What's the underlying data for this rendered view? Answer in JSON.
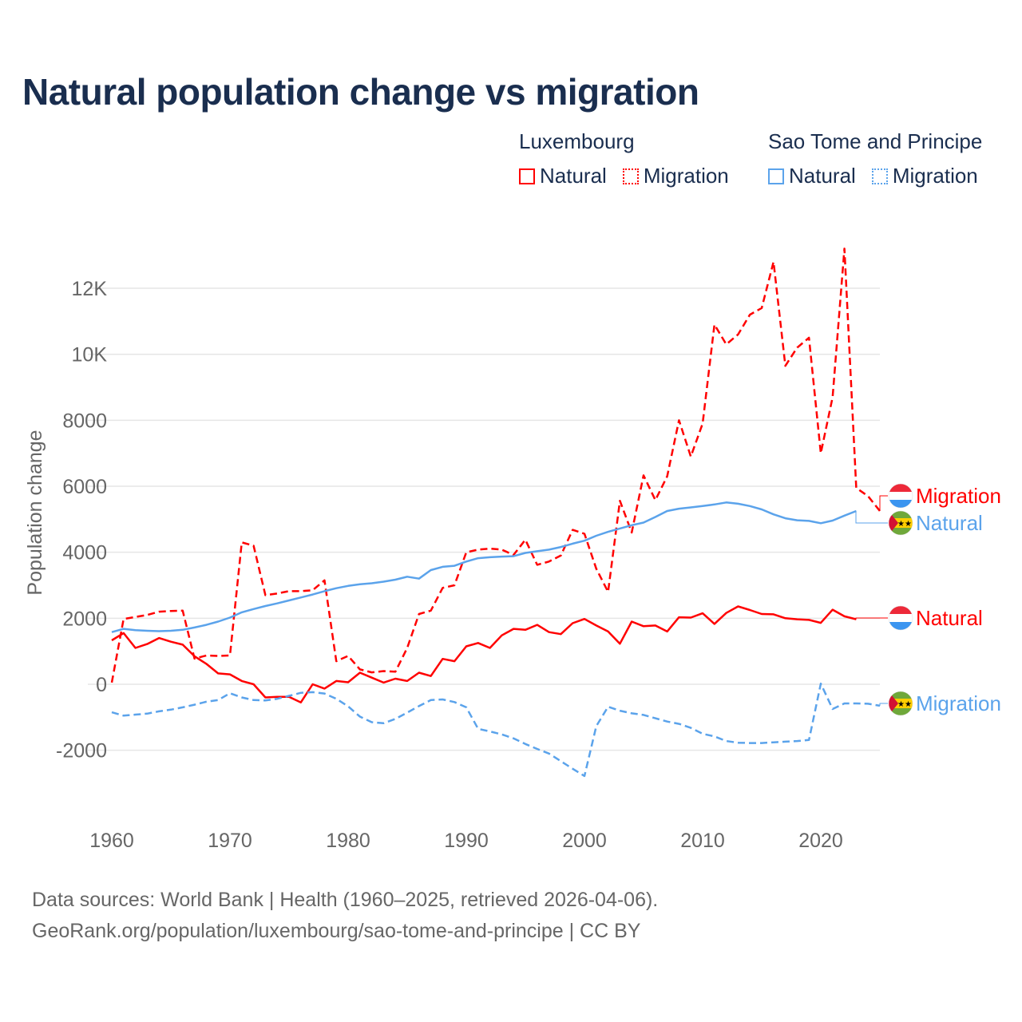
{
  "title": "Natural population change vs migration",
  "legend": {
    "groups": [
      {
        "name": "Luxembourg",
        "color": "#ff0000",
        "items": [
          "Natural",
          "Migration"
        ]
      },
      {
        "name": "Sao Tome and Principe",
        "color": "#5ba3eb",
        "items": [
          "Natural",
          "Migration"
        ]
      }
    ]
  },
  "footer": {
    "line1": "Data sources: World Bank | Health (1960–2025, retrieved 2026-04-06).",
    "line2": "GeoRank.org/population/luxembourg/sao-tome-and-principe | CC BY"
  },
  "chart_data": {
    "type": "line",
    "title": "Natural population change vs migration",
    "xlabel": "",
    "ylabel": "Population change",
    "xlim": [
      1960,
      2025
    ],
    "ylim": [
      -3500,
      13500
    ],
    "x_ticks": [
      1960,
      1970,
      1980,
      1990,
      2000,
      2010,
      2020
    ],
    "x_tick_labels": [
      "1960",
      "1970",
      "1980",
      "1990",
      "2000",
      "2010",
      "2020"
    ],
    "y_ticks": [
      -2000,
      0,
      2000,
      4000,
      6000,
      8000,
      10000,
      12000
    ],
    "y_tick_labels": [
      "-2000",
      "0",
      "2000",
      "4000",
      "6000",
      "8000",
      "10K",
      "12K"
    ],
    "grid": true,
    "legend_placement": "top-right",
    "series": [
      {
        "name": "Luxembourg Natural",
        "country": "Luxembourg",
        "kind": "Natural",
        "end_label": "Natural",
        "color": "#ff0000",
        "dashed": false,
        "start_year": 1960,
        "values": [
          1330,
          1550,
          1100,
          1220,
          1400,
          1290,
          1200,
          850,
          620,
          330,
          300,
          100,
          0,
          -400,
          -380,
          -380,
          -550,
          0,
          -130,
          100,
          60,
          350,
          200,
          50,
          170,
          100,
          350,
          250,
          770,
          700,
          1150,
          1250,
          1100,
          1480,
          1680,
          1650,
          1800,
          1580,
          1520,
          1850,
          1980,
          1780,
          1600,
          1230,
          1900,
          1760,
          1780,
          1600,
          2030,
          2020,
          2150,
          1830,
          2160,
          2360,
          2250,
          2130,
          2120,
          2000,
          1970,
          1950,
          1860,
          2260,
          2060,
          1970
        ]
      },
      {
        "name": "Luxembourg Migration",
        "country": "Luxembourg",
        "kind": "Migration",
        "end_label": "Migration",
        "color": "#ff0000",
        "dashed": true,
        "start_year": 1960,
        "values": [
          50,
          1980,
          2040,
          2100,
          2200,
          2220,
          2230,
          780,
          870,
          860,
          870,
          4300,
          4200,
          2700,
          2750,
          2820,
          2820,
          2850,
          3150,
          700,
          860,
          450,
          360,
          400,
          380,
          1100,
          2130,
          2230,
          2920,
          3000,
          4000,
          4080,
          4110,
          4080,
          3920,
          4380,
          3620,
          3720,
          3900,
          4680,
          4560,
          3500,
          2800,
          5560,
          4600,
          6330,
          5580,
          6300,
          8000,
          6900,
          7900,
          10900,
          10300,
          10600,
          11200,
          11400,
          12800,
          9650,
          10200,
          10500,
          7000,
          8700,
          13200,
          5950,
          5700,
          5250
        ]
      },
      {
        "name": "Sao Tome and Principe Natural",
        "country": "Sao Tome and Principe",
        "kind": "Natural",
        "end_label": "Natural",
        "color": "#5ba3eb",
        "dashed": false,
        "start_year": 1960,
        "values": [
          1580,
          1680,
          1640,
          1620,
          1610,
          1620,
          1650,
          1720,
          1800,
          1900,
          2020,
          2180,
          2280,
          2370,
          2450,
          2540,
          2630,
          2720,
          2820,
          2910,
          2980,
          3030,
          3060,
          3110,
          3170,
          3260,
          3200,
          3460,
          3560,
          3590,
          3720,
          3820,
          3850,
          3870,
          3880,
          3980,
          4030,
          4080,
          4160,
          4260,
          4350,
          4500,
          4620,
          4720,
          4820,
          4900,
          5070,
          5250,
          5320,
          5360,
          5400,
          5450,
          5510,
          5470,
          5400,
          5300,
          5150,
          5030,
          4970,
          4950,
          4880,
          4960,
          5110,
          5250
        ]
      },
      {
        "name": "Sao Tome and Principe Migration",
        "country": "Sao Tome and Principe",
        "kind": "Migration",
        "end_label": "Migration",
        "color": "#5ba3eb",
        "dashed": true,
        "start_year": 1960,
        "values": [
          -850,
          -950,
          -920,
          -890,
          -820,
          -770,
          -700,
          -620,
          -530,
          -480,
          -270,
          -400,
          -480,
          -490,
          -440,
          -350,
          -260,
          -240,
          -280,
          -440,
          -670,
          -980,
          -1150,
          -1180,
          -1050,
          -860,
          -660,
          -480,
          -460,
          -540,
          -700,
          -1350,
          -1430,
          -1520,
          -1640,
          -1810,
          -1960,
          -2100,
          -2330,
          -2560,
          -2780,
          -1270,
          -680,
          -800,
          -880,
          -930,
          -1030,
          -1130,
          -1200,
          -1320,
          -1500,
          -1580,
          -1720,
          -1770,
          -1780,
          -1780,
          -1760,
          -1740,
          -1720,
          -1690,
          20,
          -750,
          -580,
          -580,
          -590,
          -650
        ]
      }
    ]
  }
}
